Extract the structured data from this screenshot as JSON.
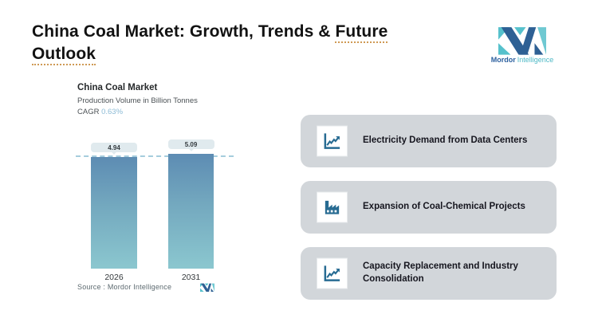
{
  "title": {
    "line1_prefix": "China Coal Market: Growth, Trends & ",
    "line1_underlined": "Future",
    "line2_underlined": "Outlook"
  },
  "brand": {
    "name_bold": "Mordor",
    "name_light": "Intelligence"
  },
  "chart": {
    "title": "China Coal Market",
    "subtitle": "Production Volume in Billion Tonnes",
    "cagr_label": "CAGR",
    "cagr_value": "0.63%",
    "source": "Source :  Mordor Intelligence"
  },
  "chart_data": {
    "type": "bar",
    "title": "China Coal Market",
    "ylabel": "Production Volume in Billion Tonnes",
    "cagr": "0.63%",
    "categories": [
      "2026",
      "2031"
    ],
    "values": [
      4.94,
      5.09
    ],
    "value_labels": [
      "4.94",
      "5.09"
    ],
    "ylim": [
      0,
      5.2
    ],
    "grid": false,
    "legend": false,
    "dashed_reference_line": 4.94,
    "bar_gradient_top": "#5d8cb3",
    "bar_gradient_bottom": "#8bc7cf"
  },
  "cards": [
    {
      "icon": "trend-up-chart-icon",
      "label": "Electricity Demand from Data Centers"
    },
    {
      "icon": "factory-icon",
      "label": "Expansion of Coal-Chemical Projects"
    },
    {
      "icon": "trend-up-chart-icon",
      "label": "Capacity Replacement and Industry Consolidation"
    }
  ],
  "colors": {
    "brand_blue": "#2e6094",
    "brand_teal": "#56c1cc",
    "icon_blue": "#276b92",
    "card_bg": "#d2d6da",
    "cagr_value": "#8cbbd6",
    "title_underline": "#cf9a55",
    "badge_bg": "#e0eaee",
    "dashed_line": "#a5cddd"
  }
}
